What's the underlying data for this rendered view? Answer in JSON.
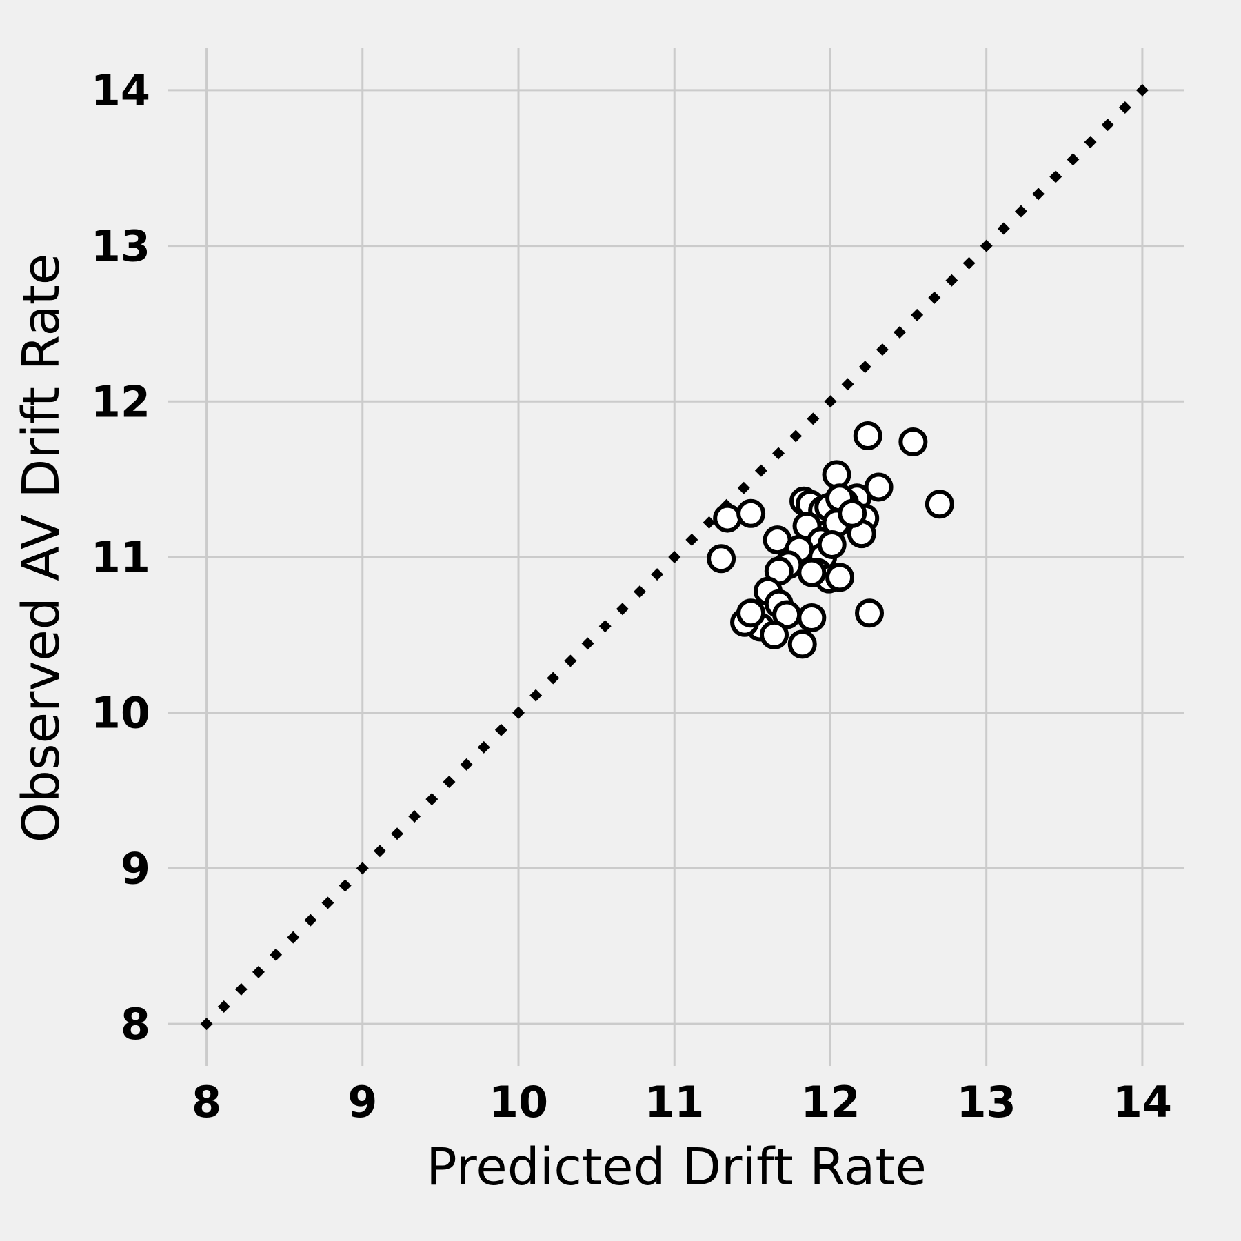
{
  "chart_data": {
    "type": "scatter",
    "title": "",
    "xlabel": "Predicted Drift Rate",
    "ylabel": "Observed AV Drift Rate",
    "xlim": [
      7.75,
      14.27
    ],
    "ylim": [
      7.73,
      14.27
    ],
    "xticks": [
      "8",
      "9",
      "10",
      "11",
      "12",
      "13",
      "14"
    ],
    "yticks": [
      "8",
      "9",
      "10",
      "11",
      "12",
      "13",
      "14"
    ],
    "grid": true,
    "reference_line": {
      "style": "dotted",
      "from": [
        8,
        8
      ],
      "to": [
        14,
        14
      ]
    },
    "series": [
      {
        "x": [
          12.24,
          12.53,
          12.04,
          12.31,
          11.83,
          11.87,
          12.17,
          11.95,
          12.09,
          12.22,
          11.99,
          12.06,
          12.7,
          11.34,
          11.49,
          11.85,
          11.94,
          12.04,
          12.2,
          11.66,
          11.8,
          11.95,
          11.3,
          11.73,
          11.67,
          11.92,
          11.99,
          12.06,
          11.6,
          11.67,
          11.72,
          11.55,
          11.45,
          11.49,
          11.88,
          12.25,
          11.64,
          11.82,
          12.01,
          12.14,
          11.88
        ],
        "y": [
          11.78,
          11.74,
          11.53,
          11.45,
          11.36,
          11.34,
          11.38,
          11.3,
          11.35,
          11.25,
          11.32,
          11.38,
          11.34,
          11.25,
          11.28,
          11.2,
          11.1,
          11.22,
          11.15,
          11.11,
          11.05,
          11.0,
          10.99,
          10.95,
          10.91,
          10.9,
          10.86,
          10.87,
          10.78,
          10.7,
          10.63,
          10.55,
          10.58,
          10.64,
          10.61,
          10.64,
          10.5,
          10.44,
          11.08,
          11.28,
          10.9
        ]
      }
    ]
  }
}
